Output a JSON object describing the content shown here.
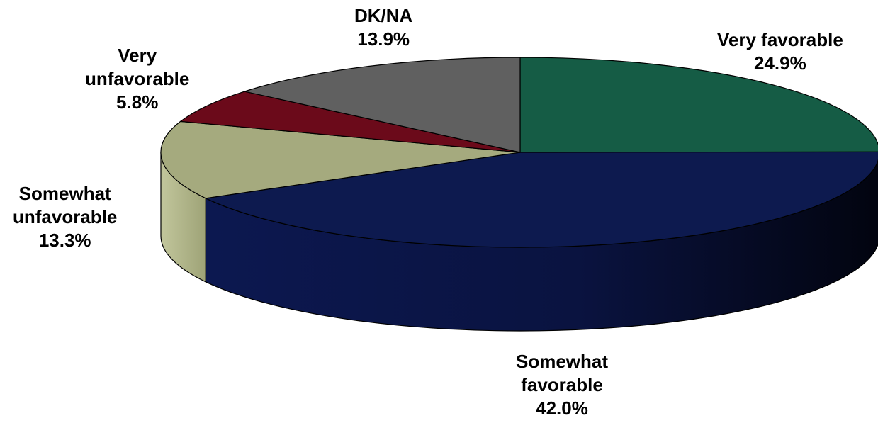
{
  "chart_data": {
    "type": "pie",
    "style": "3d",
    "slices": [
      {
        "key": "very_favorable",
        "label_lines": [
          "Very favorable"
        ],
        "value": 24.9,
        "value_label": "24.9%",
        "color": "#155c45"
      },
      {
        "key": "somewhat_favorable",
        "label_lines": [
          "Somewhat",
          "favorable"
        ],
        "value": 42.0,
        "value_label": "42.0%",
        "color": "#0d1a4f"
      },
      {
        "key": "somewhat_unfavorable",
        "label_lines": [
          "Somewhat",
          "unfavorable"
        ],
        "value": 13.3,
        "value_label": "13.3%",
        "color": "#a5aa7e"
      },
      {
        "key": "very_unfavorable",
        "label_lines": [
          "Very",
          "unfavorable"
        ],
        "value": 5.8,
        "value_label": "5.8%",
        "color": "#6b0a1a"
      },
      {
        "key": "dk_na",
        "label_lines": [
          "DK/NA"
        ],
        "value": 13.9,
        "value_label": "13.9%",
        "color": "#606060"
      }
    ],
    "start_angle": "12 o'clock",
    "direction": "clockwise",
    "legend": "none"
  }
}
